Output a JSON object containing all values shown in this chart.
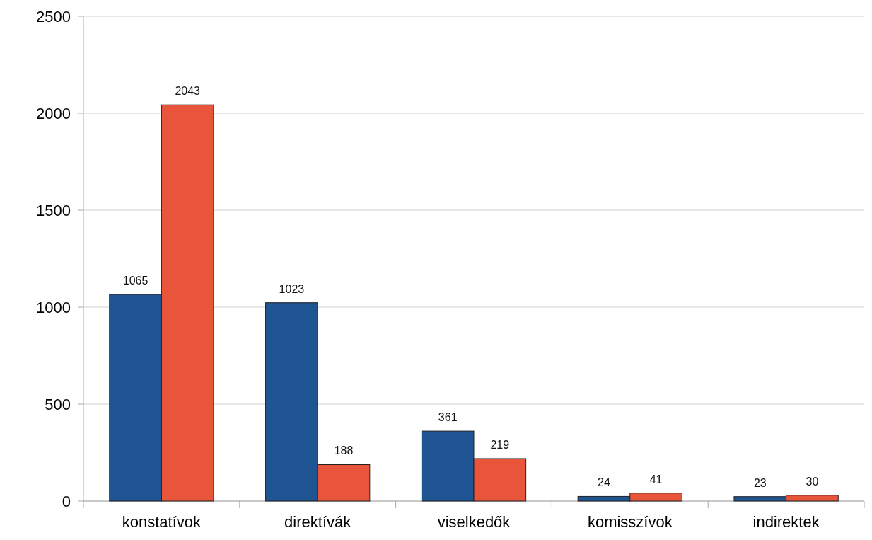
{
  "chart_data": {
    "type": "bar",
    "categories": [
      "konstatívok",
      "direktívák",
      "viselkedők",
      "komisszívok",
      "indirektek"
    ],
    "series": [
      {
        "color": "#1f5592",
        "values": [
          1065,
          1023,
          361,
          24,
          23
        ]
      },
      {
        "color": "#e8553a",
        "values": [
          2043,
          188,
          219,
          41,
          30
        ]
      }
    ],
    "ylim": [
      0,
      2500
    ],
    "yticks": [
      0,
      500,
      1000,
      1500,
      2000,
      2500
    ],
    "grid": "y",
    "data_labels": true
  }
}
